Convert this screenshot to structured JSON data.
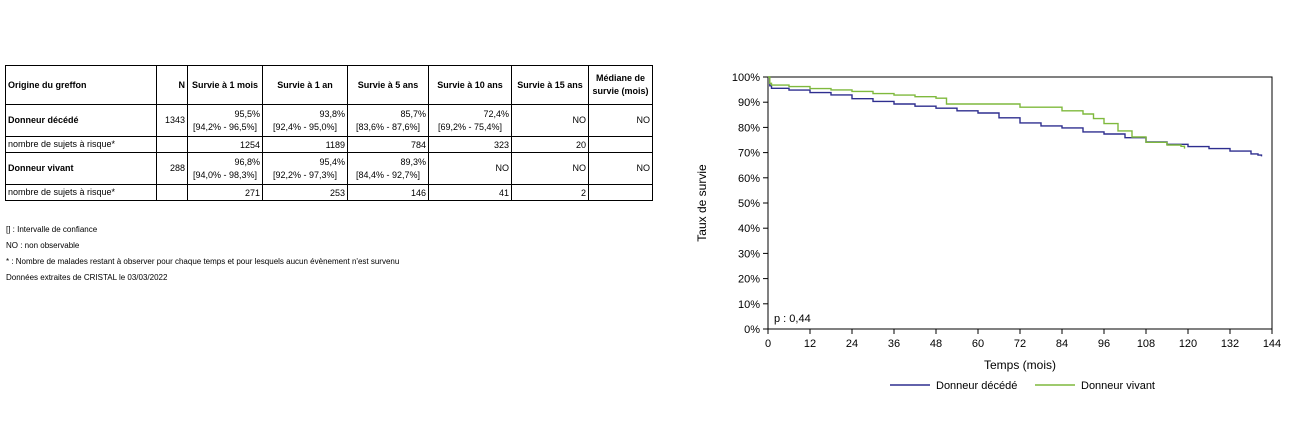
{
  "table": {
    "headers": {
      "origin": "Origine du greffon",
      "n": "N",
      "m1": "Survie à 1 mois",
      "y1": "Survie à 1 an",
      "y5": "Survie à 5 ans",
      "y10": "Survie à 10 ans",
      "y15": "Survie à 15 ans",
      "median_line1": "Médiane de",
      "median_line2": "survie (mois)"
    },
    "rows": [
      {
        "label": "Donneur décédé",
        "n": "1343",
        "m1": {
          "value": "95,5%",
          "ci": "[94,2% - 96,5%]"
        },
        "y1": {
          "value": "93,8%",
          "ci": "[92,4% - 95,0%]"
        },
        "y5": {
          "value": "85,7%",
          "ci": "[83,6% - 87,6%]"
        },
        "y10": {
          "value": "72,4%",
          "ci": "[69,2% - 75,4%]"
        },
        "y15": "NO",
        "median": "NO",
        "risk_label": "nombre de sujets à risque*",
        "risk": {
          "n": "",
          "m1": "1254",
          "y1": "1189",
          "y5": "784",
          "y10": "323",
          "y15": "20",
          "median": ""
        }
      },
      {
        "label": "Donneur vivant",
        "n": "288",
        "m1": {
          "value": "96,8%",
          "ci": "[94,0% - 98,3%]"
        },
        "y1": {
          "value": "95,4%",
          "ci": "[92,2% - 97,3%]"
        },
        "y5": {
          "value": "89,3%",
          "ci": "[84,4% - 92,7%]"
        },
        "y10": "NO",
        "y15": "NO",
        "median": "NO",
        "risk_label": "nombre de sujets à risque*",
        "risk": {
          "n": "",
          "m1": "271",
          "y1": "253",
          "y5": "146",
          "y10": "41",
          "y15": "2",
          "median": ""
        }
      }
    ]
  },
  "notes": [
    "[] : Intervalle de confiance",
    "NO : non observable",
    "* : Nombre de malades restant à observer pour chaque temps et pour lesquels aucun évènement n'est survenu",
    "Données extraites de CRISTAL le 03/03/2022"
  ],
  "chart_data": {
    "type": "line",
    "title": "",
    "xlabel": "Temps (mois)",
    "ylabel": "Taux de survie",
    "xlim": [
      0,
      144
    ],
    "ylim": [
      0,
      100
    ],
    "x_ticks": [
      0,
      12,
      24,
      36,
      48,
      60,
      72,
      84,
      96,
      108,
      120,
      132,
      144
    ],
    "y_ticks": [
      0,
      10,
      20,
      30,
      40,
      50,
      60,
      70,
      80,
      90,
      100
    ],
    "y_tick_labels": [
      "0%",
      "10%",
      "20%",
      "30%",
      "40%",
      "50%",
      "60%",
      "70%",
      "80%",
      "90%",
      "100%"
    ],
    "grid": false,
    "legend_position": "bottom",
    "annotation": "p : 0,44",
    "series": [
      {
        "name": "Donneur décédé",
        "color": "#2e2e8f",
        "points": [
          [
            0,
            100
          ],
          [
            0.5,
            96.5
          ],
          [
            1,
            95.5
          ],
          [
            6,
            94.8
          ],
          [
            12,
            93.8
          ],
          [
            18,
            92.9
          ],
          [
            24,
            91.4
          ],
          [
            30,
            90.3
          ],
          [
            36,
            89.3
          ],
          [
            42,
            88.4
          ],
          [
            48,
            87.6
          ],
          [
            54,
            86.6
          ],
          [
            60,
            85.7
          ],
          [
            66,
            83.8
          ],
          [
            72,
            81.8
          ],
          [
            78,
            80.6
          ],
          [
            84,
            79.8
          ],
          [
            90,
            78.2
          ],
          [
            96,
            77.4
          ],
          [
            102,
            75.9
          ],
          [
            108,
            74.2
          ],
          [
            114,
            73.3
          ],
          [
            120,
            72.4
          ],
          [
            126,
            71.6
          ],
          [
            132,
            70.6
          ],
          [
            138,
            69.5
          ],
          [
            140,
            69.0
          ],
          [
            141,
            68.5
          ]
        ]
      },
      {
        "name": "Donneur vivant",
        "color": "#7fb93d",
        "points": [
          [
            0,
            100
          ],
          [
            0.5,
            97.5
          ],
          [
            1,
            96.8
          ],
          [
            6,
            96.2
          ],
          [
            12,
            95.4
          ],
          [
            18,
            94.9
          ],
          [
            24,
            94.3
          ],
          [
            30,
            93.4
          ],
          [
            36,
            92.8
          ],
          [
            42,
            92.2
          ],
          [
            48,
            91.6
          ],
          [
            51,
            89.3
          ],
          [
            60,
            89.3
          ],
          [
            72,
            88.0
          ],
          [
            84,
            86.6
          ],
          [
            90,
            85.3
          ],
          [
            93,
            83.5
          ],
          [
            96,
            81.5
          ],
          [
            100,
            78.6
          ],
          [
            104,
            76.2
          ],
          [
            108,
            74.1
          ],
          [
            114,
            73.0
          ],
          [
            118,
            72.5
          ],
          [
            119,
            71.6
          ]
        ]
      }
    ]
  }
}
